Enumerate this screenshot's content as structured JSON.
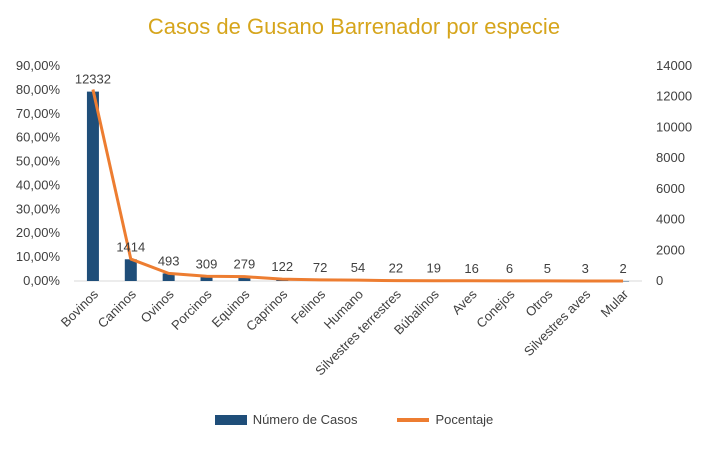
{
  "colors": {
    "title": "#d6a51c",
    "bars": "#1f4e79",
    "line": "#ed7d31",
    "grid": "#d9d9d9",
    "text": "#404040"
  },
  "chart_data": {
    "type": "bar",
    "title": "Casos de Gusano Barrenador por especie",
    "categories": [
      "Bovinos",
      "Caninos",
      "Ovinos",
      "Porcinos",
      "Equinos",
      "Caprinos",
      "Felinos",
      "Humano",
      "Silvestres terrestres",
      "Búbalinos",
      "Aves",
      "Conejos",
      "Otros",
      "Silvestres aves",
      "Mular"
    ],
    "series": [
      {
        "name": "Número de Casos",
        "axis": "right",
        "type": "bar",
        "values": [
          12332,
          1414,
          493,
          309,
          279,
          122,
          72,
          54,
          22,
          19,
          16,
          6,
          5,
          3,
          2
        ]
      },
      {
        "name": "Pocentaje",
        "axis": "left",
        "type": "line",
        "values": [
          0.8016,
          0.0919,
          0.032,
          0.0201,
          0.0181,
          0.0079,
          0.0047,
          0.0035,
          0.0014,
          0.0012,
          0.001,
          0.0004,
          0.0003,
          0.0002,
          0.0001
        ]
      }
    ],
    "data_labels": [
      "12332",
      "1414",
      "493",
      "309",
      "279",
      "122",
      "72",
      "54",
      "22",
      "19",
      "16",
      "6",
      "5",
      "3",
      "2"
    ],
    "left_axis": {
      "ylim": [
        0,
        0.9
      ],
      "ticks": [
        "0,00%",
        "10,00%",
        "20,00%",
        "30,00%",
        "40,00%",
        "50,00%",
        "60,00%",
        "70,00%",
        "80,00%",
        "90,00%"
      ]
    },
    "right_axis": {
      "ylim": [
        0,
        14000
      ],
      "ticks": [
        "0",
        "2000",
        "4000",
        "6000",
        "8000",
        "10000",
        "12000",
        "14000"
      ]
    },
    "grid": false,
    "legend": "bottom"
  }
}
